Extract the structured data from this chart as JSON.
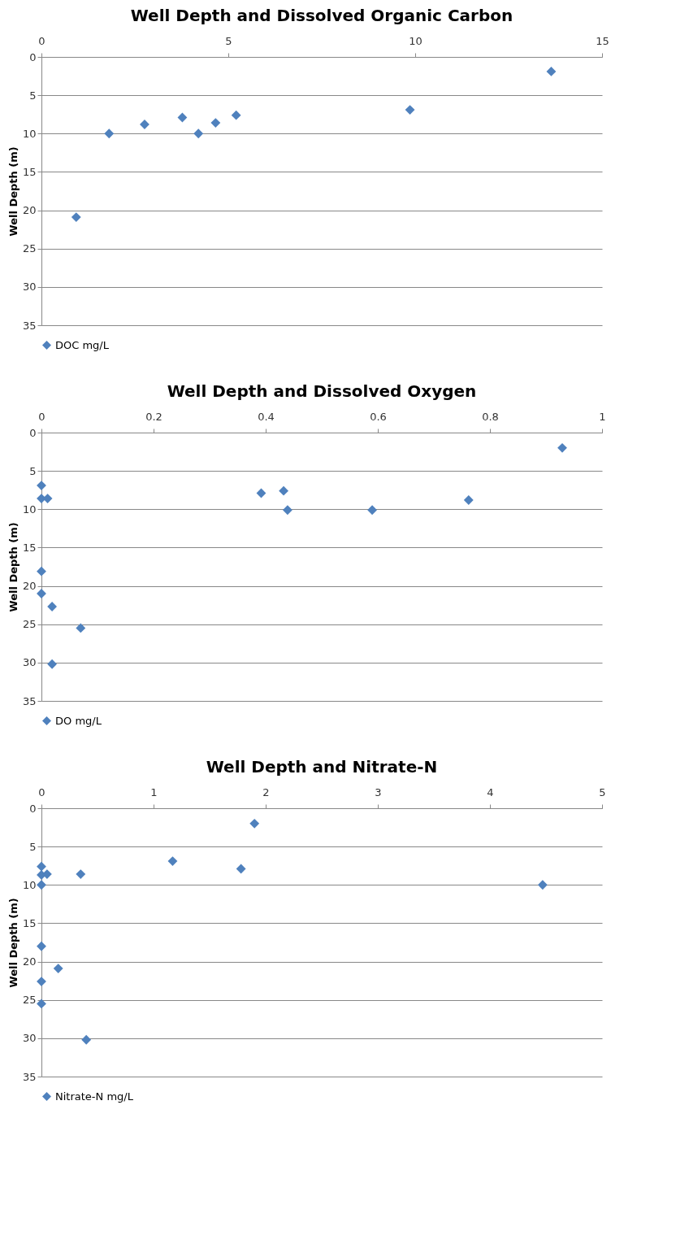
{
  "chart_data": [
    {
      "type": "scatter",
      "title": "Well Depth and Dissolved Organic Carbon",
      "ylabel": "Well Depth (m)",
      "xlim": [
        0,
        15
      ],
      "xticks": [
        0,
        5,
        10,
        15
      ],
      "ylim": [
        35,
        0
      ],
      "yticks": [
        0,
        5,
        10,
        15,
        20,
        25,
        30,
        35
      ],
      "grid": "y",
      "legend": "bottom",
      "marker": "diamond",
      "series": [
        {
          "name": "DOC mg/L",
          "color": "#4f81bd",
          "x": [
            13.64,
            9.86,
            5.21,
            4.66,
            4.2,
            3.77,
            2.76,
            1.81,
            0.93
          ],
          "values": [
            1.9,
            6.9,
            7.6,
            8.6,
            10,
            7.9,
            8.8,
            10,
            20.9
          ]
        }
      ]
    },
    {
      "type": "scatter",
      "title": "Well Depth and Dissolved Oxygen",
      "ylabel": "Well Depth (m)",
      "xlim": [
        0,
        1
      ],
      "xticks": [
        0,
        0.2,
        0.4,
        0.6,
        0.8,
        1
      ],
      "ylim": [
        35,
        0
      ],
      "yticks": [
        0,
        5,
        10,
        15,
        20,
        25,
        30,
        35
      ],
      "grid": "y",
      "legend": "bottom",
      "marker": "diamond",
      "series": [
        {
          "name": "DO mg/L",
          "color": "#4f81bd",
          "x": [
            0.929,
            0,
            0,
            0.011,
            0.392,
            0.432,
            0.439,
            0.59,
            0.762,
            0,
            0,
            0.019,
            0.07,
            0.019
          ],
          "values": [
            2.0,
            6.9,
            8.6,
            8.6,
            7.9,
            7.6,
            10.1,
            10.1,
            8.8,
            18.1,
            21,
            22.7,
            25.5,
            30.2
          ]
        }
      ]
    },
    {
      "type": "scatter",
      "title": "Well Depth and Nitrate-N",
      "ylabel": "Well Depth (m)",
      "xlim": [
        0,
        5
      ],
      "xticks": [
        0,
        1,
        2,
        3,
        4,
        5
      ],
      "ylim": [
        35,
        0
      ],
      "yticks": [
        0,
        5,
        10,
        15,
        20,
        25,
        30,
        35
      ],
      "grid": "y",
      "legend": "bottom",
      "marker": "diamond",
      "series": [
        {
          "name": "Nitrate-N mg/L",
          "color": "#4f81bd",
          "x": [
            1.9,
            1.17,
            1.78,
            4.47,
            0.35,
            0,
            0,
            0.05,
            0,
            0,
            0.15,
            0,
            0,
            0.4
          ],
          "values": [
            2.0,
            6.9,
            7.9,
            10,
            8.6,
            7.6,
            8.7,
            8.6,
            10,
            18,
            20.9,
            22.6,
            25.5,
            30.2
          ]
        }
      ]
    }
  ]
}
